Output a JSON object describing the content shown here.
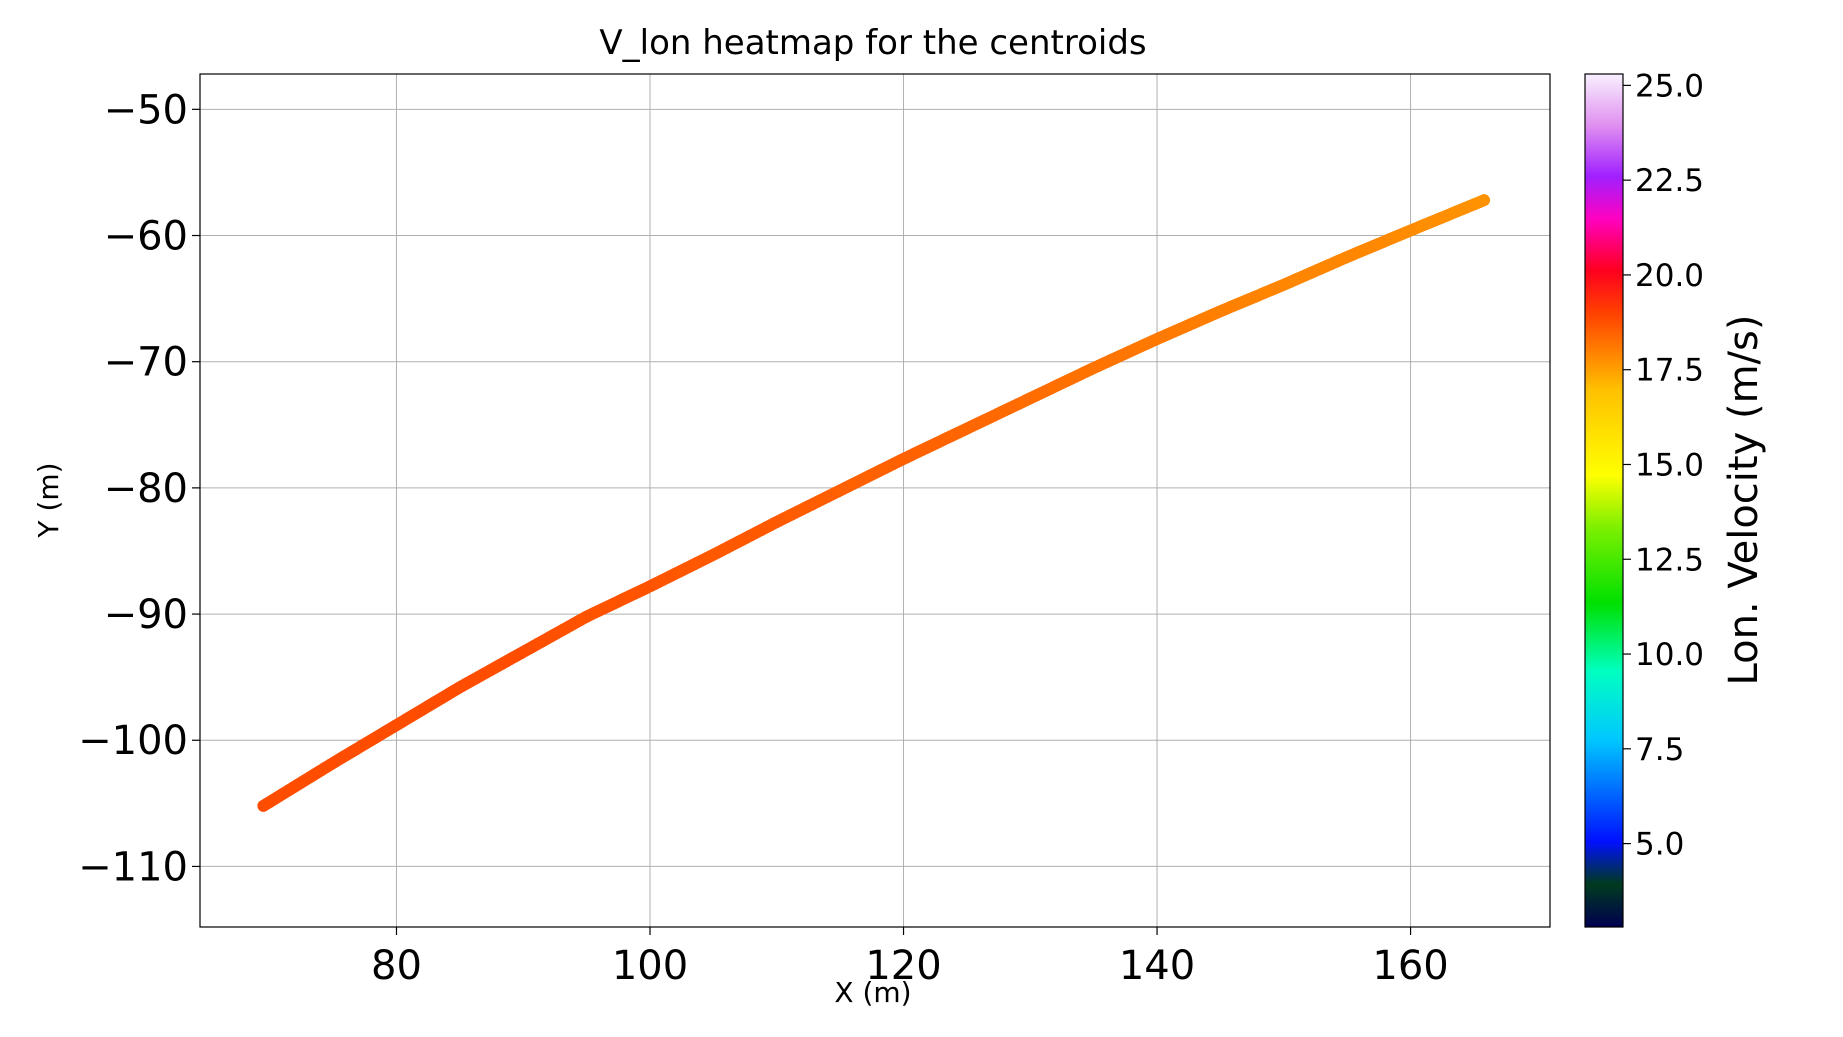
{
  "chart_data": {
    "type": "scatter",
    "title": "V_lon heatmap for the centroids",
    "xlabel": "X (m)",
    "ylabel": "Y (m)",
    "xlim": [
      64.5,
      171
    ],
    "ylim": [
      -114.8,
      -47.2
    ],
    "x_ticks": [
      80,
      100,
      120,
      140,
      160
    ],
    "y_ticks": [
      -50,
      -60,
      -70,
      -80,
      -90,
      -100,
      -110
    ],
    "x_tick_labels": [
      "80",
      "100",
      "120",
      "140",
      "160"
    ],
    "y_tick_labels": [
      "−50",
      "−60",
      "−70",
      "−80",
      "−90",
      "−100",
      "−110"
    ],
    "grid": true,
    "series": [
      {
        "x": [
          69.5,
          75,
          80,
          85,
          90,
          95,
          100,
          105,
          110,
          115,
          120,
          125,
          130,
          135,
          140,
          145,
          150,
          155,
          160,
          165.8
        ],
        "y": [
          -105.2,
          -101.8,
          -98.8,
          -95.8,
          -93.0,
          -90.2,
          -87.8,
          -85.3,
          -82.7,
          -80.2,
          -77.7,
          -75.3,
          -72.9,
          -70.5,
          -68.2,
          -66.0,
          -63.9,
          -61.7,
          -59.6,
          -57.2
        ],
        "v_lon": [
          18.8,
          18.8,
          18.8,
          18.8,
          18.8,
          18.7,
          18.7,
          18.6,
          18.6,
          18.5,
          18.5,
          18.4,
          18.3,
          18.2,
          18.1,
          18.0,
          17.9,
          17.9,
          17.8,
          17.7
        ]
      }
    ],
    "colorbar": {
      "label": "Lon. Velocity (m/s)",
      "range": [
        2.8,
        25.3
      ],
      "ticks": [
        5.0,
        7.5,
        10.0,
        12.5,
        15.0,
        17.5,
        20.0,
        22.5,
        25.0
      ],
      "tick_labels": [
        "5.0",
        "7.5",
        "10.0",
        "12.5",
        "15.0",
        "17.5",
        "20.0",
        "22.5",
        "25.0"
      ],
      "colormap": [
        [
          "#000050",
          0.0
        ],
        [
          "#003a1e",
          0.05
        ],
        [
          "#0010ff",
          0.1
        ],
        [
          "#00c8ff",
          0.22
        ],
        [
          "#00ffc0",
          0.3
        ],
        [
          "#00e000",
          0.38
        ],
        [
          "#80f000",
          0.47
        ],
        [
          "#ffff00",
          0.53
        ],
        [
          "#ffc000",
          0.63
        ],
        [
          "#ff4000",
          0.72
        ],
        [
          "#ff0020",
          0.77
        ],
        [
          "#ff00c0",
          0.83
        ],
        [
          "#a020ff",
          0.88
        ],
        [
          "#e090f0",
          0.94
        ],
        [
          "#f8f0ff",
          1.0
        ]
      ]
    }
  }
}
